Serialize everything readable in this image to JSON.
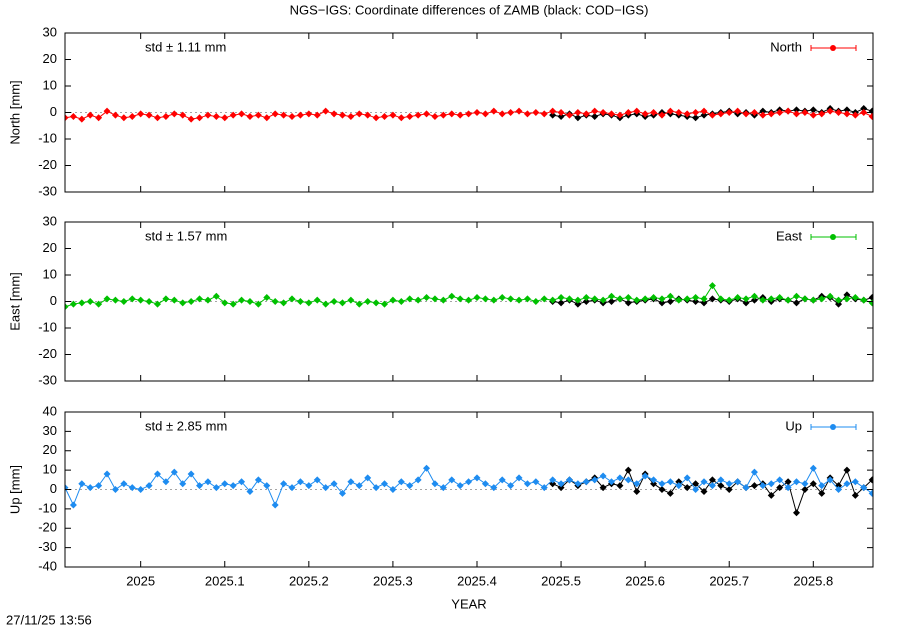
{
  "title": "NGS−IGS: Coordinate differences of ZAMB (black: COD−IGS)",
  "timestamp": "27/11/25 13:56",
  "chart_data": [
    {
      "type": "line",
      "ylabel": "North [mm]",
      "annotation": "std ± 1.11 mm",
      "annotation_color": "#ff0000",
      "xlim": [
        2024.91,
        2025.871
      ],
      "xticks": [
        2025,
        2025.1,
        2025.2,
        2025.3,
        2025.4,
        2025.5,
        2025.6,
        2025.7,
        2025.8
      ],
      "ylim": [
        -30,
        30
      ],
      "yticks": [
        -30,
        -20,
        -10,
        0,
        10,
        20,
        30
      ],
      "series": [
        {
          "color": "#000000",
          "x": [
            2025.49,
            2025.5,
            2025.51,
            2025.52,
            2025.53,
            2025.54,
            2025.55,
            2025.56,
            2025.57,
            2025.58,
            2025.59,
            2025.6,
            2025.61,
            2025.62,
            2025.63,
            2025.64,
            2025.65,
            2025.66,
            2025.67,
            2025.68,
            2025.69,
            2025.7,
            2025.71,
            2025.72,
            2025.73,
            2025.74,
            2025.75,
            2025.76,
            2025.77,
            2025.78,
            2025.79,
            2025.8,
            2025.81,
            2025.82,
            2025.83,
            2025.84,
            2025.85,
            2025.86,
            2025.87
          ],
          "values": [
            -1,
            -1.5,
            -0.5,
            -2,
            -1,
            -1.5,
            -0.5,
            -1,
            -2,
            -1,
            -0.5,
            -1.5,
            -1,
            0,
            -0.5,
            -1,
            -1.5,
            -2,
            -1,
            -0.5,
            0,
            0.5,
            -0.5,
            0,
            -1,
            0.5,
            0,
            1,
            0.5,
            1,
            0.5,
            1,
            0,
            1.5,
            0.5,
            1,
            0,
            1.5,
            0.5
          ]
        },
        {
          "name": "North",
          "color": "#ff0000",
          "x": [
            2024.91,
            2024.92,
            2024.93,
            2024.94,
            2024.95,
            2024.96,
            2024.97,
            2024.98,
            2024.99,
            2025,
            2025.01,
            2025.02,
            2025.03,
            2025.04,
            2025.05,
            2025.06,
            2025.07,
            2025.08,
            2025.09,
            2025.1,
            2025.11,
            2025.12,
            2025.13,
            2025.14,
            2025.15,
            2025.16,
            2025.17,
            2025.18,
            2025.19,
            2025.2,
            2025.21,
            2025.22,
            2025.23,
            2025.24,
            2025.25,
            2025.26,
            2025.27,
            2025.28,
            2025.29,
            2025.3,
            2025.31,
            2025.32,
            2025.33,
            2025.34,
            2025.35,
            2025.36,
            2025.37,
            2025.38,
            2025.39,
            2025.4,
            2025.41,
            2025.42,
            2025.43,
            2025.44,
            2025.45,
            2025.46,
            2025.47,
            2025.48,
            2025.49,
            2025.5,
            2025.51,
            2025.52,
            2025.53,
            2025.54,
            2025.55,
            2025.56,
            2025.57,
            2025.58,
            2025.59,
            2025.6,
            2025.61,
            2025.62,
            2025.63,
            2025.64,
            2025.65,
            2025.66,
            2025.67,
            2025.68,
            2025.69,
            2025.7,
            2025.71,
            2025.72,
            2025.73,
            2025.74,
            2025.75,
            2025.76,
            2025.77,
            2025.78,
            2025.79,
            2025.8,
            2025.81,
            2025.82,
            2025.83,
            2025.84,
            2025.85,
            2025.86,
            2025.87
          ],
          "values": [
            -2,
            -1.5,
            -2.5,
            -1,
            -2,
            0.5,
            -1,
            -2,
            -1.5,
            -0.5,
            -1,
            -2,
            -1.5,
            -0.5,
            -1,
            -2.5,
            -2,
            -1,
            -1.5,
            -2,
            -1,
            -0.5,
            -1.5,
            -1,
            -2,
            -0.5,
            -1,
            -1.5,
            -1,
            -0.5,
            -1,
            0.5,
            -0.5,
            -1,
            -1.5,
            -0.5,
            -1,
            -2,
            -1.5,
            -1,
            -2,
            -1.5,
            -1,
            -0.5,
            -1.5,
            -1,
            -0.5,
            -1,
            -0.5,
            0,
            -0.5,
            0.5,
            -0.5,
            0,
            0.5,
            -0.5,
            0,
            -0.5,
            0.5,
            0,
            -1,
            0,
            -0.5,
            0.5,
            0,
            -0.5,
            -1,
            0,
            0.5,
            -0.5,
            0,
            -1,
            0.5,
            0,
            -0.5,
            0,
            0.5,
            -1,
            -0.5,
            0,
            0.5,
            -0.5,
            0,
            -1,
            -0.5,
            0,
            0.5,
            -0.5,
            0,
            -1,
            -0.5,
            0.5,
            0,
            -0.5,
            -1,
            0,
            -1.5
          ]
        }
      ]
    },
    {
      "type": "line",
      "ylabel": "East [mm]",
      "annotation": "std ± 1.57 mm",
      "annotation_color": "#00c000",
      "xlim": [
        2024.91,
        2025.871
      ],
      "xticks": [
        2025,
        2025.1,
        2025.2,
        2025.3,
        2025.4,
        2025.5,
        2025.6,
        2025.7,
        2025.8
      ],
      "ylim": [
        -30,
        30
      ],
      "yticks": [
        -30,
        -20,
        -10,
        0,
        10,
        20,
        30
      ],
      "series": [
        {
          "color": "#000000",
          "x": [
            2025.49,
            2025.5,
            2025.51,
            2025.52,
            2025.53,
            2025.54,
            2025.55,
            2025.56,
            2025.57,
            2025.58,
            2025.59,
            2025.6,
            2025.61,
            2025.62,
            2025.63,
            2025.64,
            2025.65,
            2025.66,
            2025.67,
            2025.68,
            2025.69,
            2025.7,
            2025.71,
            2025.72,
            2025.73,
            2025.74,
            2025.75,
            2025.76,
            2025.77,
            2025.78,
            2025.79,
            2025.8,
            2025.81,
            2025.82,
            2025.83,
            2025.84,
            2025.85,
            2025.86,
            2025.87
          ],
          "values": [
            0,
            -0.5,
            0.5,
            -1,
            0,
            0.5,
            -0.5,
            0,
            1,
            -0.5,
            0,
            0.5,
            1,
            -0.5,
            0,
            1,
            0.5,
            0,
            -0.5,
            1,
            0.5,
            0,
            1,
            -0.5,
            0.5,
            1.5,
            0,
            1,
            0.5,
            -0.5,
            1,
            0.5,
            2,
            1.5,
            -1,
            2.5,
            1,
            0.5,
            1.5
          ]
        },
        {
          "name": "East",
          "color": "#00c000",
          "x": [
            2024.91,
            2024.92,
            2024.93,
            2024.94,
            2024.95,
            2024.96,
            2024.97,
            2024.98,
            2024.99,
            2025,
            2025.01,
            2025.02,
            2025.03,
            2025.04,
            2025.05,
            2025.06,
            2025.07,
            2025.08,
            2025.09,
            2025.1,
            2025.11,
            2025.12,
            2025.13,
            2025.14,
            2025.15,
            2025.16,
            2025.17,
            2025.18,
            2025.19,
            2025.2,
            2025.21,
            2025.22,
            2025.23,
            2025.24,
            2025.25,
            2025.26,
            2025.27,
            2025.28,
            2025.29,
            2025.3,
            2025.31,
            2025.32,
            2025.33,
            2025.34,
            2025.35,
            2025.36,
            2025.37,
            2025.38,
            2025.39,
            2025.4,
            2025.41,
            2025.42,
            2025.43,
            2025.44,
            2025.45,
            2025.46,
            2025.47,
            2025.48,
            2025.49,
            2025.5,
            2025.51,
            2025.52,
            2025.53,
            2025.54,
            2025.55,
            2025.56,
            2025.57,
            2025.58,
            2025.59,
            2025.6,
            2025.61,
            2025.62,
            2025.63,
            2025.64,
            2025.65,
            2025.66,
            2025.67,
            2025.68,
            2025.69,
            2025.7,
            2025.71,
            2025.72,
            2025.73,
            2025.74,
            2025.75,
            2025.76,
            2025.77,
            2025.78,
            2025.79,
            2025.8,
            2025.81,
            2025.82,
            2025.83,
            2025.84,
            2025.85,
            2025.86,
            2025.87
          ],
          "values": [
            -2,
            -1,
            -0.5,
            0,
            -1,
            1,
            0.5,
            0,
            1,
            0.5,
            0,
            -1,
            1,
            0.5,
            -0.5,
            0,
            1,
            0.5,
            2,
            -0.5,
            -1,
            0.5,
            0,
            -1,
            1.5,
            0,
            -0.5,
            1,
            0,
            -0.5,
            0.5,
            -1,
            0,
            -0.5,
            0.5,
            -1,
            0,
            -0.5,
            -1,
            0.5,
            0,
            1,
            0.5,
            1.5,
            1,
            0.5,
            2,
            1,
            0.5,
            1.5,
            1,
            0.5,
            1.5,
            1,
            0.5,
            1,
            0,
            1,
            0.5,
            1.5,
            1,
            0.5,
            1.5,
            1,
            0.5,
            2,
            1,
            1.5,
            0.5,
            1,
            1.5,
            1,
            2,
            0.5,
            1,
            1.5,
            1,
            6,
            1,
            0.5,
            1.5,
            1,
            2,
            0.5,
            1,
            1.5,
            0.5,
            2,
            1,
            0.5,
            1,
            2,
            0.5,
            1,
            1.5,
            0.5,
            -0.5
          ]
        }
      ]
    },
    {
      "type": "line",
      "ylabel": "Up [mm]",
      "xlabel": "YEAR",
      "annotation": "std ± 2.85 mm",
      "annotation_color": "#1e8cf0",
      "xlim": [
        2024.91,
        2025.871
      ],
      "xticks": [
        2025,
        2025.1,
        2025.2,
        2025.3,
        2025.4,
        2025.5,
        2025.6,
        2025.7,
        2025.8
      ],
      "ylim": [
        -40,
        40
      ],
      "yticks": [
        -40,
        -30,
        -20,
        -10,
        0,
        10,
        20,
        30,
        40
      ],
      "series": [
        {
          "color": "#000000",
          "x": [
            2025.49,
            2025.5,
            2025.51,
            2025.52,
            2025.53,
            2025.54,
            2025.55,
            2025.56,
            2025.57,
            2025.58,
            2025.59,
            2025.6,
            2025.61,
            2025.62,
            2025.63,
            2025.64,
            2025.65,
            2025.66,
            2025.67,
            2025.68,
            2025.69,
            2025.7,
            2025.71,
            2025.72,
            2025.73,
            2025.74,
            2025.75,
            2025.76,
            2025.77,
            2025.78,
            2025.79,
            2025.8,
            2025.81,
            2025.82,
            2025.83,
            2025.84,
            2025.85,
            2025.86,
            2025.87
          ],
          "values": [
            3,
            1,
            5,
            2,
            4,
            6,
            1,
            3,
            2,
            10,
            -1,
            8,
            3,
            0,
            -2,
            4,
            1,
            3,
            -1,
            5,
            2,
            0,
            4,
            1,
            2,
            3,
            -3,
            1,
            4,
            -12,
            0,
            3,
            -2,
            6,
            2,
            10,
            -3,
            1,
            5
          ]
        },
        {
          "name": "Up",
          "color": "#1e8cf0",
          "x": [
            2024.91,
            2024.92,
            2024.93,
            2024.94,
            2024.95,
            2024.96,
            2024.97,
            2024.98,
            2024.99,
            2025,
            2025.01,
            2025.02,
            2025.03,
            2025.04,
            2025.05,
            2025.06,
            2025.07,
            2025.08,
            2025.09,
            2025.1,
            2025.11,
            2025.12,
            2025.13,
            2025.14,
            2025.15,
            2025.16,
            2025.17,
            2025.18,
            2025.19,
            2025.2,
            2025.21,
            2025.22,
            2025.23,
            2025.24,
            2025.25,
            2025.26,
            2025.27,
            2025.28,
            2025.29,
            2025.3,
            2025.31,
            2025.32,
            2025.33,
            2025.34,
            2025.35,
            2025.36,
            2025.37,
            2025.38,
            2025.39,
            2025.4,
            2025.41,
            2025.42,
            2025.43,
            2025.44,
            2025.45,
            2025.46,
            2025.47,
            2025.48,
            2025.49,
            2025.5,
            2025.51,
            2025.52,
            2025.53,
            2025.54,
            2025.55,
            2025.56,
            2025.57,
            2025.58,
            2025.59,
            2025.6,
            2025.61,
            2025.62,
            2025.63,
            2025.64,
            2025.65,
            2025.66,
            2025.67,
            2025.68,
            2025.69,
            2025.7,
            2025.71,
            2025.72,
            2025.73,
            2025.74,
            2025.75,
            2025.76,
            2025.77,
            2025.78,
            2025.79,
            2025.8,
            2025.81,
            2025.82,
            2025.83,
            2025.84,
            2025.85,
            2025.86,
            2025.87
          ],
          "values": [
            1,
            -8,
            3,
            1,
            2,
            8,
            0,
            3,
            1,
            0,
            2,
            8,
            4,
            9,
            3,
            8,
            2,
            4,
            1,
            3,
            2,
            4,
            -1,
            5,
            2,
            -8,
            3,
            1,
            4,
            2,
            5,
            1,
            3,
            -2,
            4,
            2,
            6,
            1,
            3,
            0,
            4,
            2,
            5,
            11,
            3,
            1,
            5,
            2,
            4,
            6,
            3,
            1,
            5,
            2,
            6,
            3,
            4,
            1,
            5,
            3,
            5,
            3,
            4,
            5,
            7,
            4,
            6,
            5,
            3,
            7,
            5,
            3,
            4,
            2,
            6,
            0,
            4,
            2,
            5,
            3,
            4,
            1,
            9,
            2,
            3,
            5,
            1,
            4,
            3,
            11,
            2,
            5,
            0,
            3,
            4,
            1,
            -2
          ]
        }
      ]
    }
  ]
}
